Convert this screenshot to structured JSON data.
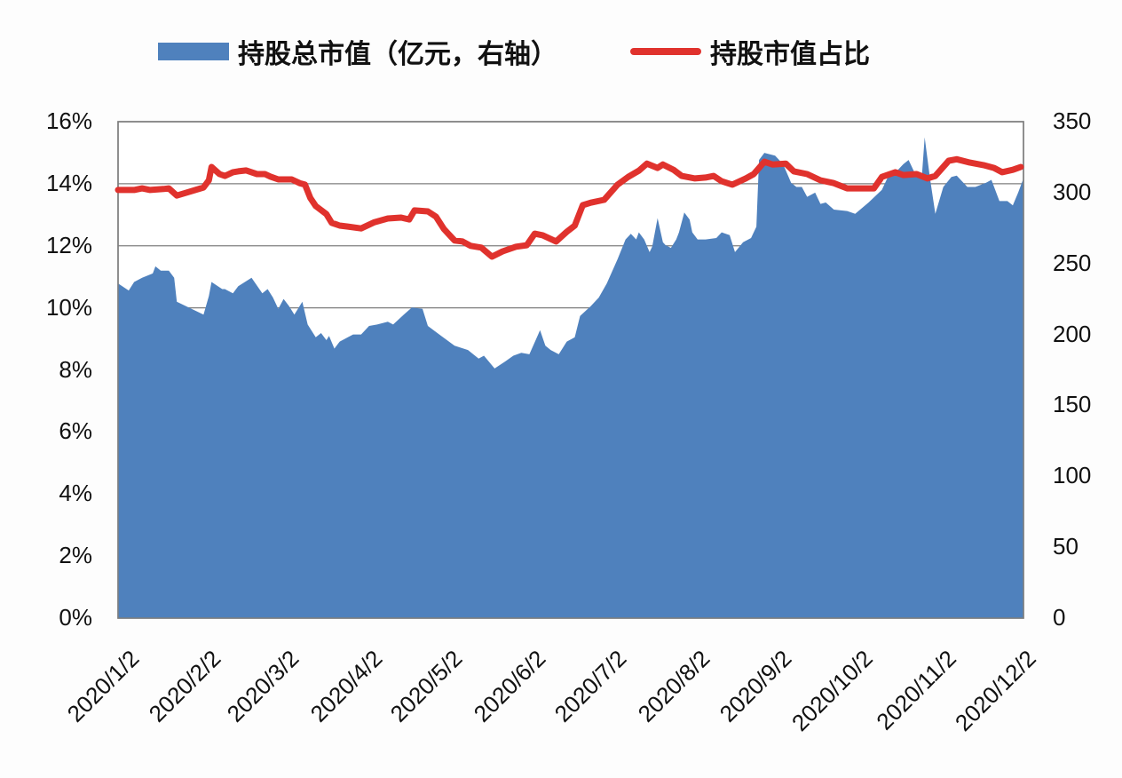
{
  "legend": {
    "area_label": "持股总市值（亿元，右轴）",
    "line_label": "持股市值占比"
  },
  "colors": {
    "area": "#4f81bd",
    "line": "#e0322d",
    "grid": "#7f7f7f"
  },
  "axes": {
    "left_ticks": [
      "0%",
      "2%",
      "4%",
      "6%",
      "8%",
      "10%",
      "12%",
      "14%",
      "16%"
    ],
    "right_ticks": [
      "0",
      "50",
      "100",
      "150",
      "200",
      "250",
      "300",
      "350"
    ],
    "x_ticks": [
      "2020/1/2",
      "2020/2/2",
      "2020/3/2",
      "2020/4/2",
      "2020/5/2",
      "2020/6/2",
      "2020/7/2",
      "2020/8/2",
      "2020/9/2",
      "2020/10/2",
      "2020/11/2",
      "2020/12/2"
    ]
  },
  "chart_data": {
    "type": "area+line",
    "title": "",
    "x_range": [
      "2020/1/2",
      "2020/12/2"
    ],
    "xlabel": "",
    "ylabel_left": "持股市值占比",
    "ylabel_right": "持股总市值（亿元）",
    "ylim_left": [
      0,
      16
    ],
    "ylim_right": [
      0,
      350
    ],
    "grid": "horizontal",
    "legend_position": "top",
    "series": [
      {
        "name": "持股总市值（亿元，右轴）",
        "type": "area",
        "axis": "right",
        "points_day_value": [
          [
            0,
            236
          ],
          [
            4,
            231
          ],
          [
            6,
            237
          ],
          [
            9,
            240
          ],
          [
            13,
            243
          ],
          [
            14,
            248
          ],
          [
            16,
            245
          ],
          [
            19,
            245
          ],
          [
            21,
            240
          ],
          [
            22,
            223
          ],
          [
            32,
            214
          ],
          [
            34,
            227
          ],
          [
            35,
            237
          ],
          [
            39,
            232
          ],
          [
            40,
            232
          ],
          [
            43,
            229
          ],
          [
            45,
            234
          ],
          [
            50,
            240
          ],
          [
            54,
            229
          ],
          [
            56,
            232
          ],
          [
            58,
            226
          ],
          [
            60,
            218
          ],
          [
            62,
            225
          ],
          [
            64,
            220
          ],
          [
            66,
            214
          ],
          [
            69,
            223
          ],
          [
            71,
            207
          ],
          [
            74,
            198
          ],
          [
            76,
            201
          ],
          [
            78,
            196
          ],
          [
            79,
            199
          ],
          [
            81,
            190
          ],
          [
            83,
            195
          ],
          [
            86,
            198
          ],
          [
            88,
            200
          ],
          [
            91,
            200
          ],
          [
            94,
            206
          ],
          [
            97,
            207
          ],
          [
            101,
            209
          ],
          [
            103,
            207
          ],
          [
            107,
            214
          ],
          [
            110,
            219
          ],
          [
            114,
            218
          ],
          [
            116,
            206
          ],
          [
            121,
            199
          ],
          [
            126,
            192
          ],
          [
            131,
            189
          ],
          [
            135,
            183
          ],
          [
            137,
            185
          ],
          [
            141,
            176
          ],
          [
            145,
            181
          ],
          [
            148,
            185
          ],
          [
            151,
            187
          ],
          [
            154,
            186
          ],
          [
            158,
            203
          ],
          [
            160,
            192
          ],
          [
            162,
            189
          ],
          [
            165,
            186
          ],
          [
            168,
            195
          ],
          [
            171,
            198
          ],
          [
            173,
            213
          ],
          [
            177,
            220
          ],
          [
            180,
            226
          ],
          [
            183,
            236
          ],
          [
            187,
            253
          ],
          [
            190,
            267
          ],
          [
            192,
            271
          ],
          [
            194,
            267
          ],
          [
            195,
            272
          ],
          [
            197,
            267
          ],
          [
            199,
            258
          ],
          [
            200,
            262
          ],
          [
            202,
            282
          ],
          [
            204,
            265
          ],
          [
            205,
            263
          ],
          [
            207,
            261
          ],
          [
            209,
            267
          ],
          [
            210,
            272
          ],
          [
            212,
            286
          ],
          [
            214,
            281
          ],
          [
            215,
            272
          ],
          [
            217,
            267
          ],
          [
            220,
            267
          ],
          [
            224,
            268
          ],
          [
            226,
            272
          ],
          [
            229,
            270
          ],
          [
            231,
            258
          ],
          [
            234,
            265
          ],
          [
            237,
            268
          ],
          [
            239,
            276
          ],
          [
            240,
            323
          ],
          [
            242,
            328
          ],
          [
            246,
            326
          ],
          [
            249,
            320
          ],
          [
            252,
            307
          ],
          [
            254,
            304
          ],
          [
            256,
            304
          ],
          [
            258,
            297
          ],
          [
            261,
            300
          ],
          [
            263,
            292
          ],
          [
            265,
            293
          ],
          [
            268,
            288
          ],
          [
            273,
            287
          ],
          [
            276,
            285
          ],
          [
            281,
            293
          ],
          [
            286,
            302
          ],
          [
            288,
            310
          ],
          [
            291,
            314
          ],
          [
            294,
            320
          ],
          [
            296,
            323
          ],
          [
            298,
            315
          ],
          [
            301,
            313
          ],
          [
            302,
            339
          ],
          [
            304,
            310
          ],
          [
            306,
            285
          ],
          [
            309,
            304
          ],
          [
            312,
            311
          ],
          [
            314,
            312
          ],
          [
            318,
            304
          ],
          [
            321,
            304
          ],
          [
            325,
            307
          ],
          [
            327,
            309
          ],
          [
            330,
            294
          ],
          [
            333,
            294
          ],
          [
            335,
            291
          ],
          [
            337,
            300
          ],
          [
            339,
            310
          ]
        ]
      },
      {
        "name": "持股市值占比",
        "type": "line",
        "axis": "left",
        "unit": "%",
        "points_day_value": [
          [
            0,
            13.8
          ],
          [
            6,
            13.8
          ],
          [
            9,
            13.85
          ],
          [
            12,
            13.8
          ],
          [
            17,
            13.83
          ],
          [
            19,
            13.85
          ],
          [
            22,
            13.62
          ],
          [
            32,
            13.88
          ],
          [
            34,
            14.11
          ],
          [
            35,
            14.54
          ],
          [
            38,
            14.31
          ],
          [
            40,
            14.25
          ],
          [
            43,
            14.37
          ],
          [
            45,
            14.4
          ],
          [
            48,
            14.43
          ],
          [
            52,
            14.31
          ],
          [
            55,
            14.31
          ],
          [
            57,
            14.23
          ],
          [
            60,
            14.14
          ],
          [
            65,
            14.14
          ],
          [
            68,
            14.02
          ],
          [
            70,
            13.97
          ],
          [
            72,
            13.54
          ],
          [
            74,
            13.28
          ],
          [
            78,
            13.02
          ],
          [
            80,
            12.74
          ],
          [
            83,
            12.65
          ],
          [
            86,
            12.62
          ],
          [
            91,
            12.56
          ],
          [
            96,
            12.76
          ],
          [
            101,
            12.88
          ],
          [
            106,
            12.91
          ],
          [
            109,
            12.85
          ],
          [
            111,
            13.14
          ],
          [
            116,
            13.11
          ],
          [
            119,
            12.94
          ],
          [
            122,
            12.54
          ],
          [
            126,
            12.17
          ],
          [
            129,
            12.14
          ],
          [
            132,
            12.0
          ],
          [
            136,
            11.94
          ],
          [
            140,
            11.65
          ],
          [
            144,
            11.82
          ],
          [
            149,
            11.97
          ],
          [
            153,
            12.02
          ],
          [
            156,
            12.39
          ],
          [
            159,
            12.34
          ],
          [
            164,
            12.14
          ],
          [
            168,
            12.45
          ],
          [
            171,
            12.65
          ],
          [
            174,
            13.31
          ],
          [
            177,
            13.39
          ],
          [
            182,
            13.48
          ],
          [
            187,
            13.97
          ],
          [
            191,
            14.22
          ],
          [
            195,
            14.42
          ],
          [
            198,
            14.65
          ],
          [
            202,
            14.51
          ],
          [
            204,
            14.62
          ],
          [
            208,
            14.45
          ],
          [
            211,
            14.25
          ],
          [
            216,
            14.17
          ],
          [
            220,
            14.2
          ],
          [
            223,
            14.25
          ],
          [
            226,
            14.08
          ],
          [
            230,
            13.97
          ],
          [
            235,
            14.17
          ],
          [
            238,
            14.31
          ],
          [
            242,
            14.71
          ],
          [
            245,
            14.62
          ],
          [
            250,
            14.65
          ],
          [
            253,
            14.4
          ],
          [
            258,
            14.31
          ],
          [
            263,
            14.11
          ],
          [
            268,
            14.02
          ],
          [
            273,
            13.85
          ],
          [
            278,
            13.85
          ],
          [
            283,
            13.85
          ],
          [
            286,
            14.22
          ],
          [
            291,
            14.37
          ],
          [
            294,
            14.28
          ],
          [
            299,
            14.31
          ],
          [
            303,
            14.17
          ],
          [
            306,
            14.25
          ],
          [
            311,
            14.74
          ],
          [
            314,
            14.79
          ],
          [
            319,
            14.68
          ],
          [
            324,
            14.6
          ],
          [
            328,
            14.51
          ],
          [
            331,
            14.37
          ],
          [
            335,
            14.45
          ],
          [
            338,
            14.54
          ]
        ]
      }
    ]
  }
}
